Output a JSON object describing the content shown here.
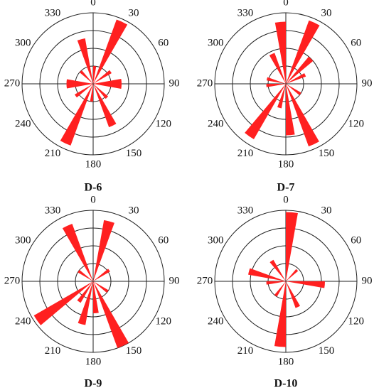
{
  "chart_data": [
    {
      "type": "rose",
      "title": "D-6",
      "color": "#ff2020",
      "xticks": [
        0,
        30,
        60,
        90,
        120,
        150,
        180,
        210,
        240,
        270,
        300,
        330
      ],
      "rlim": [
        0,
        4
      ],
      "rticks": [
        1,
        2,
        3,
        4
      ],
      "x": [
        5,
        25,
        55,
        85,
        95,
        135,
        155,
        185,
        205,
        235,
        265,
        275,
        315,
        345
      ],
      "values": [
        1.0,
        3.85,
        1.2,
        1.6,
        1.6,
        1.1,
        2.6,
        1.0,
        3.7,
        1.2,
        1.5,
        1.5,
        1.0,
        2.6
      ]
    },
    {
      "type": "rose",
      "title": "D-7",
      "color": "#ff2020",
      "xticks": [
        0,
        30,
        60,
        90,
        120,
        150,
        180,
        210,
        240,
        270,
        300,
        330
      ],
      "rlim": [
        0,
        4
      ],
      "rticks": [
        1,
        2,
        3,
        4
      ],
      "x": [
        25,
        45,
        65,
        125,
        155,
        175,
        195,
        215,
        265,
        285,
        335,
        355
      ],
      "values": [
        3.8,
        2.0,
        1.2,
        1.0,
        3.75,
        2.9,
        1.4,
        3.6,
        1.1,
        1.1,
        1.85,
        3.5
      ]
    },
    {
      "type": "rose",
      "title": "D-9",
      "color": "#ff2020",
      "xticks": [
        0,
        30,
        60,
        90,
        120,
        150,
        180,
        210,
        240,
        270,
        300,
        330
      ],
      "rlim": [
        0,
        4
      ],
      "rticks": [
        1,
        2,
        3,
        4
      ],
      "x": [
        15,
        55,
        125,
        155,
        175,
        195,
        215,
        235,
        305,
        335
      ],
      "values": [
        3.5,
        1.1,
        1.0,
        4.0,
        1.8,
        2.5,
        1.4,
        3.85,
        1.0,
        3.45
      ]
    },
    {
      "type": "rose",
      "title": "D-10",
      "color": "#ff2020",
      "xticks": [
        0,
        30,
        60,
        90,
        120,
        150,
        180,
        210,
        240,
        270,
        300,
        330
      ],
      "rlim": [
        0,
        4
      ],
      "rticks": [
        1,
        2,
        3,
        4
      ],
      "x": [
        5,
        45,
        95,
        155,
        185,
        215,
        265,
        285,
        325
      ],
      "values": [
        3.9,
        0.9,
        2.2,
        1.6,
        3.7,
        1.0,
        1.1,
        2.15,
        1.4
      ]
    }
  ]
}
